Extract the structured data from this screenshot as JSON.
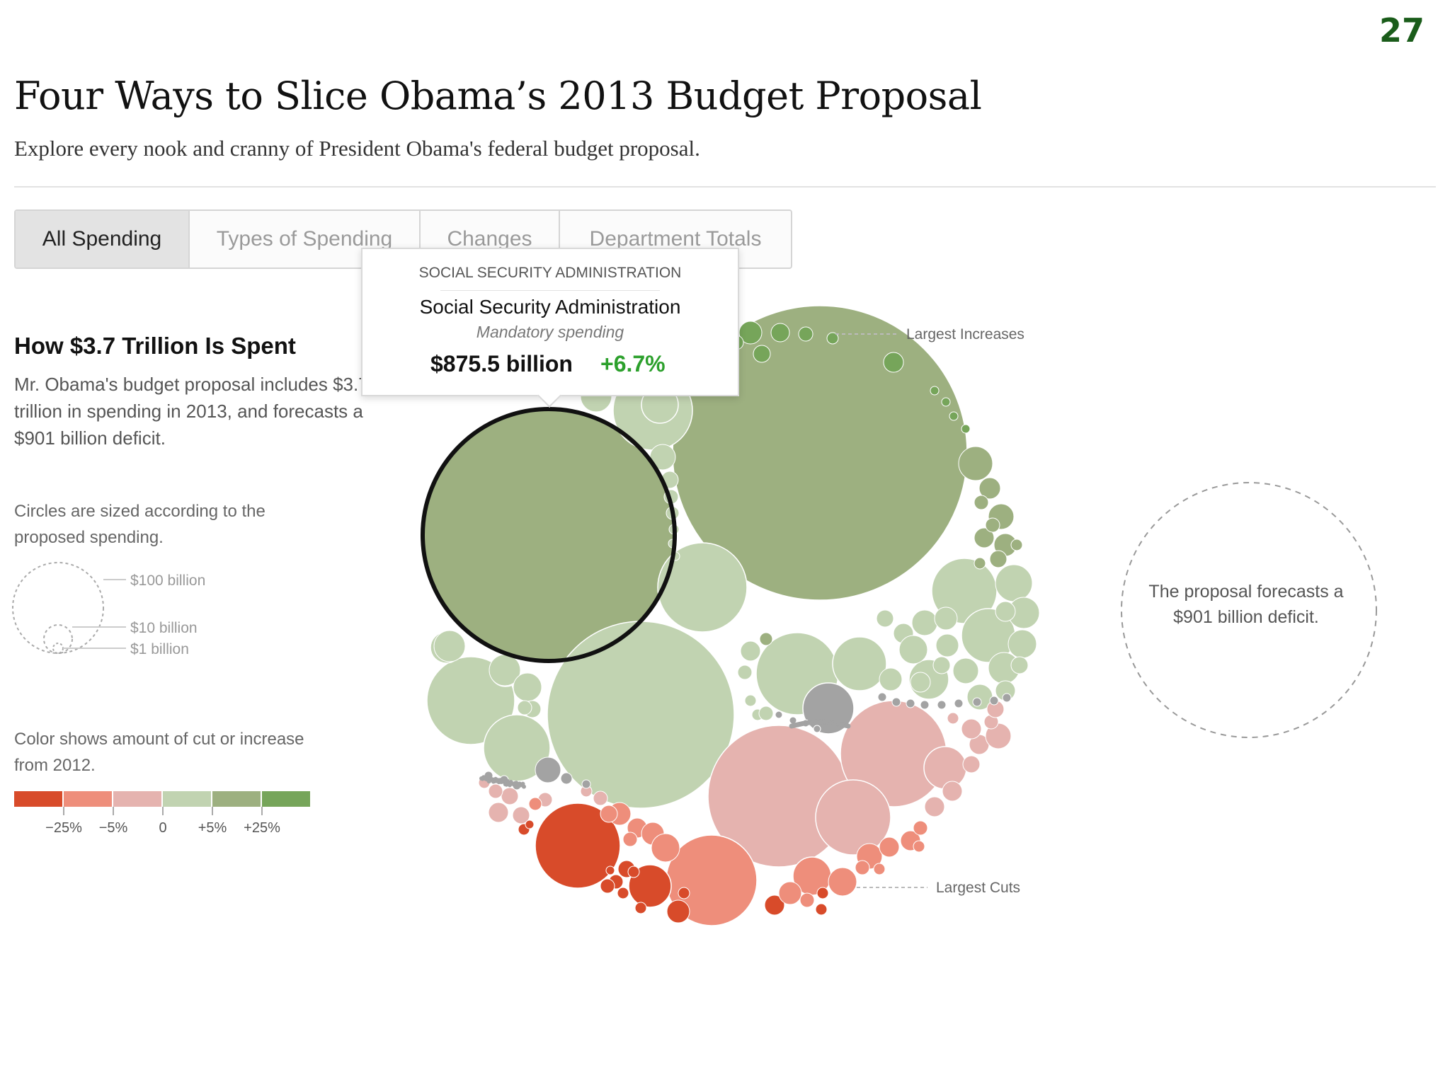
{
  "slide_number": "27",
  "header": {
    "title": "Four Ways to Slice Obama’s 2013 Budget Proposal",
    "subtitle": "Explore every nook and cranny of President Obama's federal budget proposal."
  },
  "tabs": [
    {
      "label": "All Spending",
      "active": true
    },
    {
      "label": "Types of Spending",
      "active": false
    },
    {
      "label": "Changes",
      "active": false
    },
    {
      "label": "Department Totals",
      "active": false
    }
  ],
  "sidebar": {
    "heading": "How $3.7 Trillion Is Spent",
    "body": "Mr. Obama's budget proposal includes $3.7 trillion in spending in 2013, and forecasts a $901 billion deficit.",
    "size_legend_text": "Circles are sized according to the proposed spending.",
    "size_legend_labels": [
      "$100 billion",
      "$10 billion",
      "$1 billion"
    ],
    "color_legend_text": "Color shows amount of cut or increase from 2012.",
    "color_legend_colors": [
      "#d84b2a",
      "#ee8e7b",
      "#e5b3af",
      "#c1d3b1",
      "#9db080",
      "#76a55a"
    ],
    "color_legend_ticks": [
      "−25%",
      "−5%",
      "0",
      "+5%",
      "+25%"
    ]
  },
  "tooltip": {
    "agency": "SOCIAL SECURITY ADMINISTRATION",
    "name": "Social Security Administration",
    "type": "Mandatory spending",
    "amount": "$875.5 billion",
    "change": "+6.7%"
  },
  "annotations": {
    "largest_increases": "Largest Increases",
    "largest_cuts": "Largest Cuts",
    "deficit": "The proposal forecasts a $901 billion deficit."
  },
  "chart_data": {
    "type": "bubble",
    "size_encoding": "proposed 2013 spending",
    "color_encoding": "percent change from 2012",
    "color_scale": [
      {
        "range": "< −25%",
        "color": "#d84b2a"
      },
      {
        "range": "−25% to −5%",
        "color": "#ee8e7b"
      },
      {
        "range": "−5% to 0",
        "color": "#e5b3af"
      },
      {
        "range": "0 to +5%",
        "color": "#c1d3b1"
      },
      {
        "range": "+5% to +25%",
        "color": "#9db080"
      },
      {
        "range": "> +25%",
        "color": "#76a55a"
      }
    ],
    "total_spending": "$3.7 trillion",
    "deficit": "$901 billion",
    "highlighted": {
      "name": "Social Security Administration",
      "type": "Mandatory spending",
      "value_billion": 875.5,
      "change_pct": 6.7
    }
  }
}
